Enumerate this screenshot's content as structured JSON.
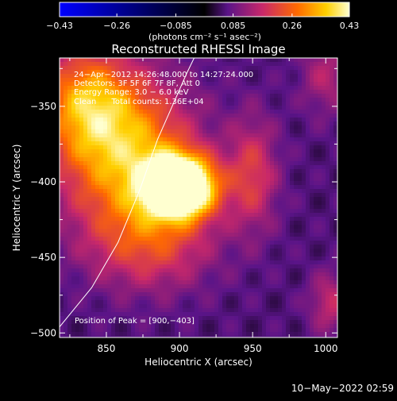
{
  "chart_data": {
    "type": "heatmap",
    "title": "Reconstructed RHESSI Image",
    "xlabel": "Heliocentric X (arcsec)",
    "ylabel": "Heliocentric Y (arcsec)",
    "xlim": [
      818,
      1008
    ],
    "ylim": [
      -503,
      -318
    ],
    "x_ticks": [
      {
        "value": 850,
        "label": "850"
      },
      {
        "value": 900,
        "label": "900"
      },
      {
        "value": 950,
        "label": "950"
      },
      {
        "value": 1000,
        "label": "1000"
      }
    ],
    "y_ticks": [
      {
        "value": -350,
        "label": "−350"
      },
      {
        "value": -400,
        "label": "−400"
      },
      {
        "value": -450,
        "label": "−450"
      },
      {
        "value": -500,
        "label": "−500"
      }
    ],
    "colorbar": {
      "min": -0.43,
      "max": 0.43,
      "ticks": [
        {
          "value": -0.43,
          "label": "−0.43"
        },
        {
          "value": -0.26,
          "label": "−0.26"
        },
        {
          "value": -0.085,
          "label": "−0.085"
        },
        {
          "value": 0.085,
          "label": "0.085"
        },
        {
          "value": 0.26,
          "label": "0.26"
        },
        {
          "value": 0.43,
          "label": "0.43"
        }
      ],
      "units": "(photons cm⁻² s⁻¹ asec⁻²)",
      "colormap": [
        "#0000ff",
        "#000000",
        "#5a1488",
        "#c8286a",
        "#ff6a00",
        "#ffd000",
        "#ffffd0"
      ]
    },
    "annotations": [
      "24−Apr−2012 14:26:48.000 to 14:27:24.000",
      "Detectors: 3F 5F 6F 7F 8F, Att 0",
      "Energy Range: 3.0 − 6.0 keV",
      "Clean      Total counts: 1.36E+04"
    ],
    "peak_label": "Position of Peak = [900,−403]",
    "peak": {
      "x": 900,
      "y": -403,
      "value": 0.43
    },
    "sources": [
      {
        "x": 900,
        "y": -403,
        "amp": 0.58,
        "sx": 17,
        "sy": 14
      },
      {
        "x": 862,
        "y": -380,
        "amp": 0.28,
        "sx": 32,
        "sy": 34
      },
      {
        "x": 835,
        "y": -345,
        "amp": 0.2,
        "sx": 22,
        "sy": 24
      },
      {
        "x": 880,
        "y": -440,
        "amp": 0.15,
        "sx": 30,
        "sy": 22
      },
      {
        "x": 950,
        "y": -395,
        "amp": 0.14,
        "sx": 12,
        "sy": 26
      },
      {
        "x": 1000,
        "y": -330,
        "amp": 0.09,
        "sx": 12,
        "sy": 18
      },
      {
        "x": 1003,
        "y": -480,
        "amp": 0.11,
        "sx": 10,
        "sy": 14
      }
    ],
    "background": 0.06,
    "limb_curve": [
      [
        818,
        -496
      ],
      [
        840,
        -470
      ],
      [
        858,
        -440
      ],
      [
        873,
        -405
      ],
      [
        885,
        -372
      ],
      [
        895,
        -350
      ],
      [
        905,
        -328
      ],
      [
        910,
        -318
      ]
    ]
  },
  "timestamp": "10−May−2022 02:59"
}
